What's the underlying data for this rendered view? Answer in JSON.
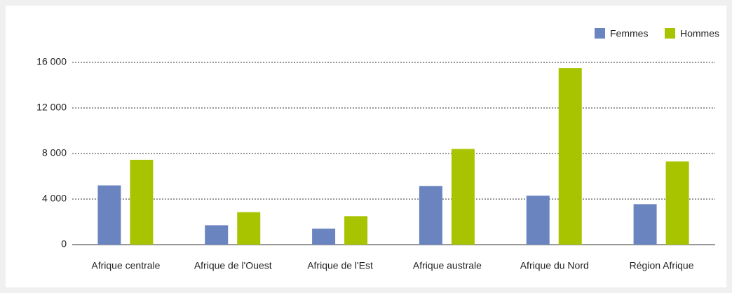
{
  "chart_data": {
    "type": "bar",
    "categories": [
      "Afrique centrale",
      "Afrique de l'Ouest",
      "Afrique de l'Est",
      "Afrique australe",
      "Afrique du Nord",
      "Région Afrique"
    ],
    "series": [
      {
        "name": "Femmes",
        "color": "#6a84c0",
        "values": [
          5200,
          1700,
          1400,
          5150,
          4300,
          3550
        ]
      },
      {
        "name": "Hommes",
        "color": "#a8c400",
        "values": [
          7450,
          2850,
          2500,
          8400,
          15500,
          7300
        ]
      }
    ],
    "ylim": [
      0,
      16000
    ],
    "yticks": [
      0,
      {
        "value": 4000,
        "label": "4 000"
      },
      {
        "value": 8000,
        "label": "8 000"
      },
      {
        "value": 12000,
        "label": "12 000"
      },
      {
        "value": 16000,
        "label": "16 000"
      }
    ],
    "grid": true,
    "legend": "top-right"
  }
}
